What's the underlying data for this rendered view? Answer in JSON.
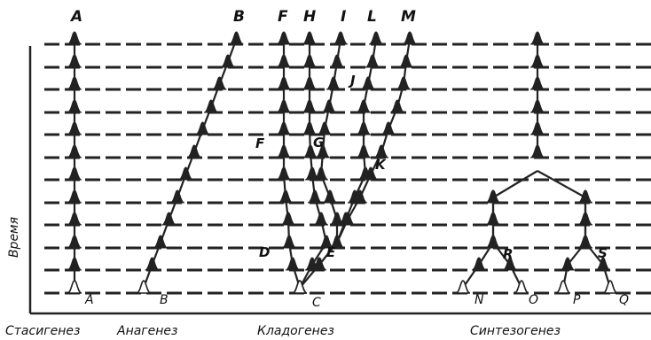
{
  "axis": {
    "y_label": "Время"
  },
  "captions": {
    "stasigenesis": "Стасигенез",
    "anagenesis": "Анагенез",
    "cladogenesis": "Кладогенез",
    "synthesogenesis": "Синтезогенез"
  },
  "labels": {
    "top": {
      "A": "A",
      "B": "B",
      "F": "F",
      "H": "H",
      "I": "I",
      "L": "L",
      "M": "M"
    },
    "middle": {
      "J": "J",
      "F2": "F",
      "G": "G",
      "K": "K",
      "D": "D",
      "E": "E",
      "R": "R",
      "S": "S"
    },
    "bottom": {
      "A": "A",
      "B": "B",
      "C": "C",
      "N": "N",
      "O": "O",
      "P": "P",
      "Q": "Q"
    }
  }
}
